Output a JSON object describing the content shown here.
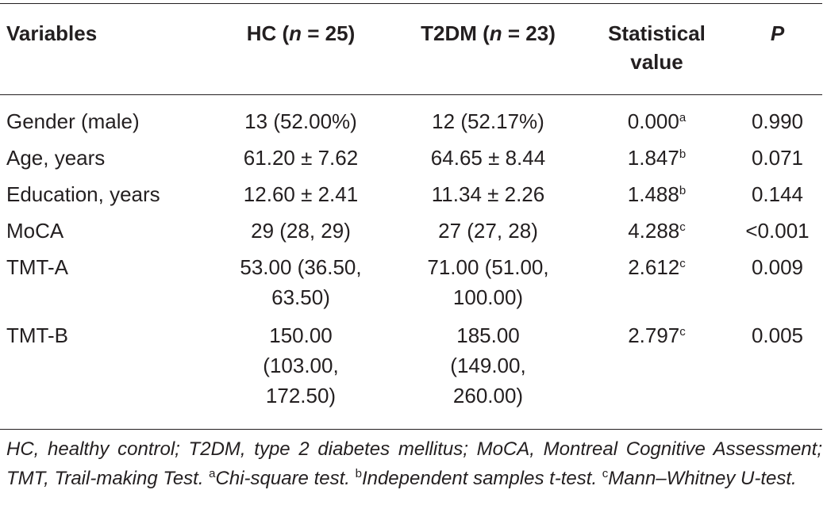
{
  "table": {
    "headers": {
      "variables": "Variables",
      "hc_prefix": "HC (",
      "hc_n": "n",
      "hc_suffix": " = 25)",
      "t2dm_prefix": "T2DM (",
      "t2dm_n": "n",
      "t2dm_suffix": " = 23)",
      "stat_line1": "Statistical",
      "stat_line2": "value",
      "p": "P"
    },
    "rows": [
      {
        "variable": "Gender (male)",
        "hc": "13 (52.00%)",
        "t2dm": "12 (52.17%)",
        "stat": "0.000",
        "stat_sup": "a",
        "p": "0.990"
      },
      {
        "variable": "Age, years",
        "hc": "61.20 ± 7.62",
        "t2dm": "64.65 ± 8.44",
        "stat": "1.847",
        "stat_sup": "b",
        "p": "0.071"
      },
      {
        "variable": "Education, years",
        "hc": "12.60 ± 2.41",
        "t2dm": "11.34 ± 2.26",
        "stat": "1.488",
        "stat_sup": "b",
        "p": "0.144"
      },
      {
        "variable": "MoCA",
        "hc": "29 (28, 29)",
        "t2dm": "27 (27, 28)",
        "stat": "4.288",
        "stat_sup": "c",
        "p": "<0.001"
      },
      {
        "variable": "TMT-A",
        "hc_l1": "53.00 (36.50,",
        "hc_l2": "63.50)",
        "t2dm_l1": "71.00 (51.00,",
        "t2dm_l2": "100.00)",
        "stat": "2.612",
        "stat_sup": "c",
        "p": "0.009"
      },
      {
        "variable": "TMT-B",
        "hc_l1": "150.00",
        "hc_l2": "(103.00,",
        "hc_l3": "172.50)",
        "t2dm_l1": "185.00",
        "t2dm_l2": "(149.00,",
        "t2dm_l3": "260.00)",
        "stat": "2.797",
        "stat_sup": "c",
        "p": "0.005"
      }
    ]
  },
  "footnote": {
    "abbreviations": "HC, healthy control; T2DM, type 2 diabetes mellitus; MoCA, Montreal Cognitive Assessment; TMT, Trail-making Test. ",
    "sup_a": "a",
    "note_a": "Chi-square test. ",
    "sup_b": "b",
    "note_b": "Independent samples t-test. ",
    "sup_c": "c",
    "note_c": "Mann–Whitney U-test."
  }
}
